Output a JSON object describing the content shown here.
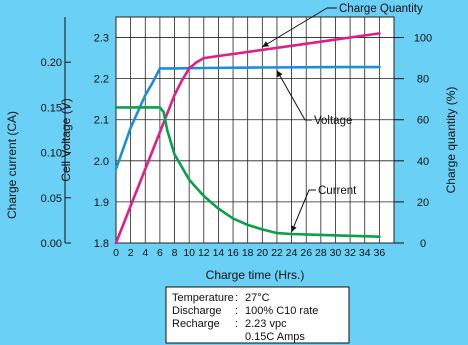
{
  "colors": {
    "background": "#6ad0f6",
    "plot_background": "#ffffff",
    "voltage": "#1a8fd6",
    "charge_quantity": "#dc1f8a",
    "current": "#0aa04a",
    "text": "#111111"
  },
  "chart_data": {
    "type": "line",
    "title": "",
    "xlabel": "Charge time (Hrs.)",
    "x_ticks": [
      0,
      2,
      4,
      6,
      8,
      10,
      12,
      14,
      16,
      18,
      20,
      22,
      24,
      26,
      28,
      30,
      32,
      34,
      36
    ],
    "xlim": [
      0,
      38
    ],
    "axes": {
      "charge_current": {
        "label": "Charge current (CA)",
        "ticks": [
          "0.00",
          "0.05",
          "0.10",
          "0.15",
          "0.20"
        ],
        "ylim": [
          0,
          0.25
        ]
      },
      "voltage": {
        "label": "Cell Voltage (V)",
        "ticks": [
          "1.8",
          "1.9",
          "2.0",
          "2.1",
          "2.2",
          "2.3"
        ],
        "ylim": [
          1.8,
          2.35
        ]
      },
      "charge_quantity": {
        "label": "Charge quantity (%)",
        "ticks": [
          "0",
          "20",
          "40",
          "60",
          "80",
          "100"
        ],
        "ylim": [
          0,
          110
        ]
      }
    },
    "grid": true,
    "series": [
      {
        "name": "Voltage",
        "axis": "voltage",
        "color_key": "voltage",
        "x": [
          0,
          2,
          4,
          5,
          6,
          6.5,
          8,
          12,
          20,
          30,
          36
        ],
        "y": [
          1.98,
          2.08,
          2.16,
          2.19,
          2.225,
          2.225,
          2.225,
          2.226,
          2.227,
          2.228,
          2.228
        ]
      },
      {
        "name": "Charge Quantity",
        "axis": "charge_quantity",
        "color_key": "charge_quantity",
        "x": [
          0,
          2,
          4,
          6,
          8,
          9,
          10,
          11,
          12,
          14,
          16,
          20,
          24,
          28,
          32,
          36
        ],
        "y": [
          0,
          18,
          36,
          54,
          72,
          79,
          85,
          88,
          90,
          91,
          92,
          94,
          96,
          98,
          100,
          102
        ]
      },
      {
        "name": "Current",
        "axis": "charge_current",
        "color_key": "current",
        "x": [
          0,
          2,
          4,
          6,
          6.5,
          7,
          8,
          10,
          12,
          14,
          16,
          18,
          20,
          22,
          24,
          28,
          32,
          36
        ],
        "y": [
          0.15,
          0.15,
          0.15,
          0.15,
          0.145,
          0.125,
          0.098,
          0.07,
          0.052,
          0.038,
          0.027,
          0.02,
          0.015,
          0.011,
          0.01,
          0.009,
          0.008,
          0.007
        ]
      }
    ],
    "annotations": [
      {
        "text": "Charge Quantity",
        "series": "Charge Quantity"
      },
      {
        "text": "Voltage",
        "series": "Voltage"
      },
      {
        "text": "Current",
        "series": "Current"
      }
    ]
  },
  "conditions": [
    {
      "label": "Temperature",
      "sep": ":",
      "value": "27°C"
    },
    {
      "label": "Discharge",
      "sep": ":",
      "value": "100% C10 rate"
    },
    {
      "label": "Recharge",
      "sep": ":",
      "value": "2.23 vpc"
    },
    {
      "label": "",
      "sep": "",
      "value": "0.15C Amps"
    }
  ]
}
